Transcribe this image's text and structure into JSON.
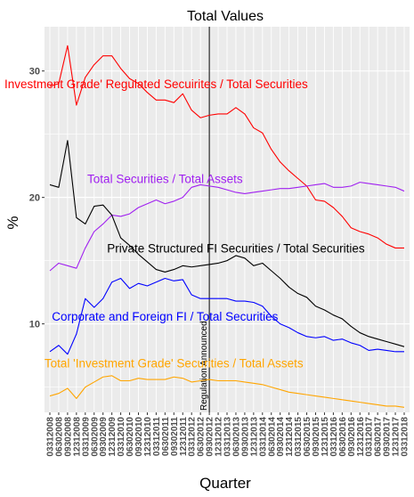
{
  "chart_data": {
    "type": "line",
    "title": "Total Values",
    "xlabel": "Quarter",
    "ylabel": "%",
    "ylim": [
      3.0,
      33.5
    ],
    "y_ticks": [
      10,
      20,
      30
    ],
    "grid": true,
    "x": [
      "03312008",
      "06302008",
      "09302008",
      "12312008",
      "03312009",
      "06302009",
      "09302009",
      "12312009",
      "03312010",
      "06302010",
      "09302010",
      "12312010",
      "03312011",
      "06302011",
      "09302011",
      "12312011",
      "03312012",
      "06302012",
      "09302012",
      "12312012",
      "03312013",
      "06302013",
      "09302013",
      "12312013",
      "03312014",
      "06302014",
      "09302014",
      "12312014",
      "03312015",
      "06302015",
      "09302015",
      "12312015",
      "03312016",
      "06302016",
      "09302016",
      "12312016",
      "03312017",
      "06302017",
      "09302017",
      "12312017",
      "03312018"
    ],
    "event": {
      "x": "09302012",
      "label": "Regulation Announced"
    },
    "series": [
      {
        "name": "Investment Grade' Regulated Secuirites / Total Securities",
        "color": "#ff0000",
        "label_anchor": {
          "x": "03312011",
          "y": 29.0
        },
        "values": [
          28.8,
          29.0,
          32.0,
          27.3,
          29.5,
          30.5,
          31.2,
          31.2,
          30.2,
          29.4,
          29.0,
          28.3,
          27.7,
          27.7,
          27.5,
          28.2,
          26.9,
          26.3,
          26.5,
          26.6,
          26.6,
          27.1,
          26.6,
          25.5,
          25.1,
          23.8,
          22.8,
          22.1,
          21.5,
          20.9,
          19.8,
          19.7,
          19.2,
          18.5,
          17.6,
          17.3,
          17.1,
          16.8,
          16.3,
          16.0,
          16.0
        ]
      },
      {
        "name": "Total Securities / Total Assets",
        "color": "#a020f0",
        "label_anchor": {
          "x": "06302011",
          "y": 21.5
        },
        "values": [
          14.2,
          14.8,
          14.6,
          14.4,
          16.0,
          17.3,
          17.9,
          18.6,
          18.5,
          18.7,
          19.2,
          19.5,
          19.8,
          19.5,
          19.7,
          20.0,
          20.8,
          21.0,
          20.9,
          20.8,
          20.6,
          20.4,
          20.3,
          20.4,
          20.5,
          20.6,
          20.7,
          20.7,
          20.8,
          20.9,
          21.0,
          21.1,
          20.8,
          20.8,
          20.9,
          21.2,
          21.1,
          21.0,
          20.9,
          20.8,
          20.5
        ]
      },
      {
        "name": "Private Structured FI Securities / Total Securities",
        "color": "#000000",
        "label_anchor": {
          "x": "06302013",
          "y": 16.0
        },
        "values": [
          21.0,
          20.8,
          24.5,
          18.4,
          17.9,
          19.3,
          19.4,
          18.6,
          16.8,
          16.2,
          15.5,
          14.9,
          14.3,
          14.1,
          14.3,
          14.6,
          14.5,
          14.6,
          14.7,
          14.8,
          15.0,
          15.4,
          15.2,
          14.6,
          14.8,
          14.2,
          13.6,
          12.9,
          12.4,
          12.1,
          11.4,
          11.1,
          10.7,
          10.4,
          9.8,
          9.3,
          9.0,
          8.8,
          8.6,
          8.4,
          8.2
        ]
      },
      {
        "name": "Corporate and Foreign FI / Total Securities",
        "color": "#0000ff",
        "label_anchor": {
          "x": "06302011",
          "y": 10.6
        },
        "values": [
          7.8,
          8.3,
          7.6,
          9.2,
          12.0,
          11.3,
          12.0,
          13.3,
          13.6,
          12.8,
          13.2,
          13.0,
          13.3,
          13.6,
          13.4,
          13.5,
          12.3,
          12.0,
          12.0,
          12.0,
          12.0,
          11.8,
          11.8,
          11.7,
          11.4,
          10.6,
          10.0,
          9.7,
          9.3,
          9.0,
          8.9,
          9.0,
          8.7,
          8.8,
          8.5,
          8.3,
          7.9,
          8.0,
          7.9,
          7.8,
          7.8
        ]
      },
      {
        "name": "Total 'Investment Grade' Securities / Total Assets",
        "color": "#ffa500",
        "label_anchor": {
          "x": "09302011",
          "y": 6.9
        },
        "values": [
          4.3,
          4.5,
          4.9,
          4.1,
          5.0,
          5.4,
          5.8,
          5.9,
          5.5,
          5.5,
          5.7,
          5.6,
          5.6,
          5.6,
          5.8,
          5.7,
          5.4,
          5.5,
          5.6,
          5.5,
          5.5,
          5.5,
          5.4,
          5.3,
          5.2,
          5.0,
          4.8,
          4.6,
          4.5,
          4.4,
          4.3,
          4.2,
          4.1,
          4.0,
          3.9,
          3.8,
          3.7,
          3.6,
          3.5,
          3.5,
          3.4
        ]
      }
    ]
  }
}
